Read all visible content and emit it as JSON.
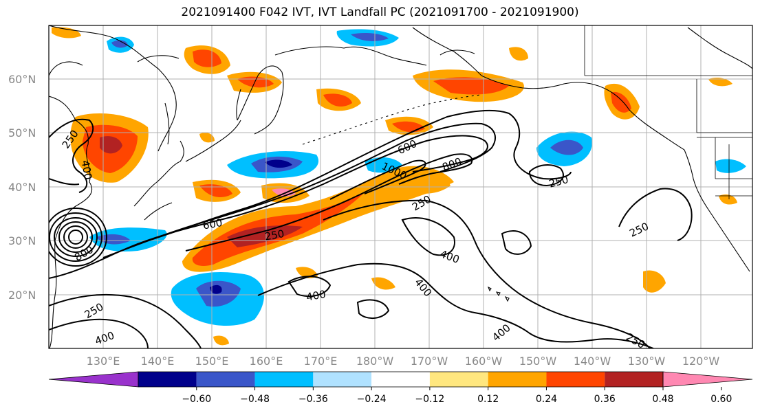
{
  "title": "2021091400 F042 IVT, IVT Landfall PC (2021091700 - 2021091900)",
  "lat_labels": [
    "60°N",
    "50°N",
    "40°N",
    "30°N",
    "20°N"
  ],
  "lon_labels": [
    "130°E",
    "140°E",
    "150°E",
    "160°E",
    "170°E",
    "180°W",
    "170°W",
    "160°W",
    "150°W",
    "140°W",
    "130°W",
    "120°W"
  ],
  "colorbar": {
    "colors": [
      "#9932cc",
      "#00008b",
      "#3a56c9",
      "#00bfff",
      "#b0e2ff",
      "#ffffff",
      "#ffe77f",
      "#ffa500",
      "#ff4500",
      "#b22222",
      "#ff88b2"
    ],
    "ticks": [
      "−0.60",
      "−0.48",
      "−0.36",
      "−0.24",
      "−0.12",
      "0.12",
      "0.24",
      "0.36",
      "0.48",
      "0.60"
    ]
  },
  "contour_labels": [
    "250",
    "400",
    "600",
    "800",
    "1000",
    "600",
    "800",
    "250",
    "250",
    "250",
    "400",
    "400",
    "400",
    "400",
    "400",
    "250",
    "250",
    "400",
    "250",
    "600",
    "800"
  ]
}
